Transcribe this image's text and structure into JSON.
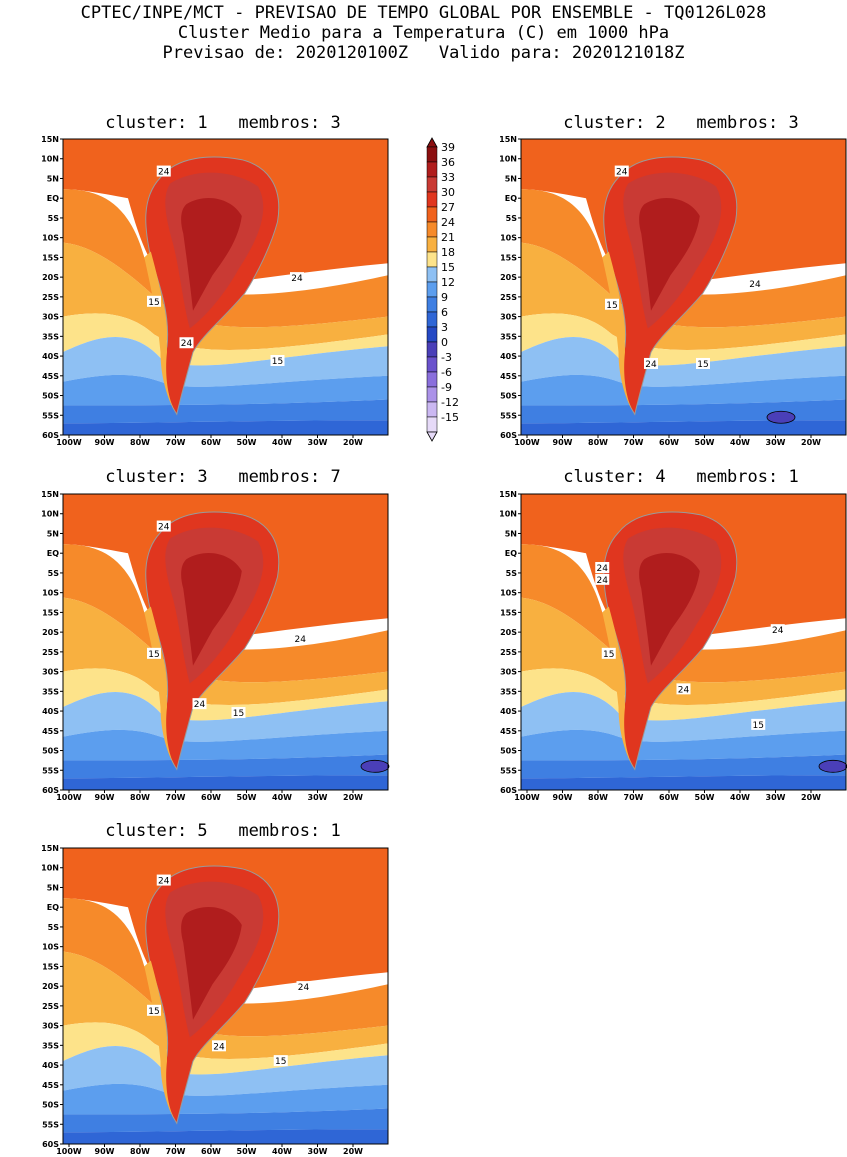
{
  "header": {
    "line1": "CPTEC/INPE/MCT - PREVISAO DE TEMPO GLOBAL POR ENSEMBLE - TQ0126L028",
    "line2": "Cluster Medio para a Temperatura (C) em 1000 hPa",
    "line3": "Previsao de: 2020120100Z   Valido para: 2020121018Z"
  },
  "axes": {
    "lat_labels": [
      "15N",
      "10N",
      "5N",
      "EQ",
      "5S",
      "10S",
      "15S",
      "20S",
      "25S",
      "30S",
      "35S",
      "40S",
      "45S",
      "50S",
      "55S",
      "60S"
    ],
    "lon_labels": [
      "100W",
      "90W",
      "80W",
      "70W",
      "60W",
      "50W",
      "40W",
      "30W",
      "20W"
    ]
  },
  "colorbar": {
    "levels": [
      "39",
      "36",
      "33",
      "30",
      "27",
      "24",
      "21",
      "18",
      "15",
      "12",
      "9",
      "6",
      "3",
      "0",
      "-3",
      "-6",
      "-9",
      "-12",
      "-15"
    ],
    "colors": [
      "#8b0f10",
      "#b01d1d",
      "#c93a34",
      "#e0361f",
      "#f0621d",
      "#f68a2a",
      "#f8b040",
      "#fde38a",
      "#8ec0f3",
      "#5c9eee",
      "#3f7fe2",
      "#2f66d6",
      "#2549c4",
      "#4a3fb8",
      "#6a52cc",
      "#8a6fdc",
      "#ab92e8",
      "#cbb8f2",
      "#e6daf8"
    ]
  },
  "maps": [
    {
      "id": 1,
      "title": "cluster: 1   membros: 3",
      "contour_labels": [
        "24",
        "15",
        "24",
        "15",
        "24"
      ]
    },
    {
      "id": 2,
      "title": "cluster: 2   membros: 3",
      "contour_labels": [
        "24",
        "15",
        "24",
        "15",
        "24"
      ]
    },
    {
      "id": 3,
      "title": "cluster: 3   membros: 7",
      "contour_labels": [
        "24",
        "15",
        "24",
        "15",
        "24"
      ]
    },
    {
      "id": 4,
      "title": "cluster: 4   membros: 1",
      "contour_labels": [
        "24",
        "24",
        "15",
        "24",
        "15",
        "24"
      ]
    },
    {
      "id": 5,
      "title": "cluster: 5   membros: 1",
      "contour_labels": [
        "24",
        "15",
        "24",
        "15",
        "24"
      ]
    }
  ],
  "palette": {
    "sea_warm": "#f0621d",
    "sea_mid": "#f68a2a",
    "sea_light": "#f8b040",
    "sea_yellow": "#fde38a",
    "sea_cool": "#8ec0f3",
    "sea_blue": "#5c9eee",
    "sea_deep": "#3f7fe2",
    "sea_deeper": "#2f66d6",
    "land_hot": "#e0361f",
    "land_hotter": "#c93a34",
    "land_core": "#b01d1d",
    "andes": "#f8b040",
    "coast": "#9a9a9a",
    "purple": "#4a3fb8"
  }
}
